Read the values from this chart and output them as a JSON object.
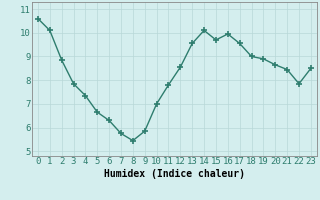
{
  "x": [
    0,
    1,
    2,
    3,
    4,
    5,
    6,
    7,
    8,
    9,
    10,
    11,
    12,
    13,
    14,
    15,
    16,
    17,
    18,
    19,
    20,
    21,
    22,
    23
  ],
  "y": [
    10.6,
    10.1,
    8.85,
    7.85,
    7.35,
    6.65,
    6.3,
    5.75,
    5.45,
    5.85,
    7.0,
    7.8,
    8.55,
    9.55,
    10.1,
    9.7,
    9.95,
    9.55,
    9.0,
    8.9,
    8.65,
    8.45,
    7.85,
    8.5
  ],
  "line_color": "#2e7d6e",
  "marker": "+",
  "markersize": 4,
  "linewidth": 1.0,
  "bg_color": "#d4eeee",
  "grid_color": "#b8d8d8",
  "xlabel": "Humidex (Indice chaleur)",
  "ylim": [
    4.8,
    11.3
  ],
  "yticks": [
    5,
    6,
    7,
    8,
    9,
    10,
    11
  ],
  "xticks": [
    0,
    1,
    2,
    3,
    4,
    5,
    6,
    7,
    8,
    9,
    10,
    11,
    12,
    13,
    14,
    15,
    16,
    17,
    18,
    19,
    20,
    21,
    22,
    23
  ],
  "xlabel_fontsize": 7.0,
  "tick_fontsize": 6.5
}
